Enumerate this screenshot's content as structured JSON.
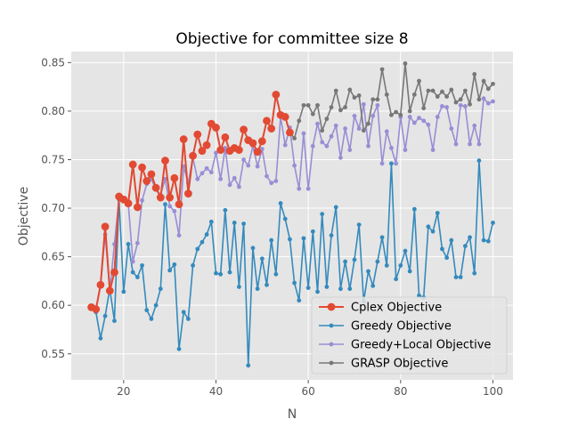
{
  "chart_data": {
    "type": "line",
    "title": "Objective for committee size 8",
    "xlabel": "N",
    "ylabel": "Objective",
    "xlim": [
      8.65,
      104.35
    ],
    "ylim": [
      0.5232,
      0.8613
    ],
    "xticks": [
      20,
      40,
      60,
      80,
      100
    ],
    "yticks": [
      0.55,
      0.6,
      0.65,
      0.7,
      0.75,
      0.8,
      0.85
    ],
    "ytick_labels": [
      "0.55",
      "0.60",
      "0.65",
      "0.70",
      "0.75",
      "0.80",
      "0.85"
    ],
    "grid": true,
    "legend_position": "lower-right",
    "series": [
      {
        "name": "Greedy Objective",
        "color": "#348abd",
        "marker": "small",
        "x": [
          13,
          14,
          15,
          16,
          17,
          18,
          19,
          20,
          21,
          22,
          23,
          24,
          25,
          26,
          27,
          28,
          29,
          30,
          31,
          32,
          33,
          34,
          35,
          36,
          37,
          38,
          39,
          40,
          41,
          42,
          43,
          44,
          45,
          46,
          47,
          48,
          49,
          50,
          51,
          52,
          53,
          54,
          55,
          56,
          57,
          58,
          59,
          60,
          61,
          62,
          63,
          64,
          65,
          66,
          67,
          68,
          69,
          70,
          71,
          72,
          73,
          74,
          75,
          76,
          77,
          78,
          79,
          80,
          81,
          82,
          83,
          84,
          85,
          86,
          87,
          88,
          89,
          90,
          91,
          92,
          93,
          94,
          95,
          96,
          97,
          98,
          99,
          100
        ],
        "values": [
          0.598,
          0.593,
          0.566,
          0.589,
          0.617,
          0.584,
          0.709,
          0.614,
          0.663,
          0.634,
          0.629,
          0.641,
          0.595,
          0.586,
          0.6,
          0.617,
          0.704,
          0.636,
          0.642,
          0.555,
          0.593,
          0.586,
          0.641,
          0.658,
          0.665,
          0.673,
          0.686,
          0.633,
          0.632,
          0.698,
          0.634,
          0.685,
          0.619,
          0.684,
          0.538,
          0.659,
          0.617,
          0.648,
          0.621,
          0.667,
          0.632,
          0.705,
          0.689,
          0.668,
          0.623,
          0.605,
          0.669,
          0.618,
          0.676,
          0.614,
          0.694,
          0.619,
          0.672,
          0.701,
          0.617,
          0.645,
          0.617,
          0.647,
          0.683,
          0.604,
          0.635,
          0.62,
          0.645,
          0.67,
          0.641,
          0.746,
          0.627,
          0.641,
          0.656,
          0.635,
          0.699,
          0.61,
          0.608,
          0.681,
          0.676,
          0.695,
          0.658,
          0.649,
          0.667,
          0.629,
          0.629,
          0.661,
          0.67,
          0.633,
          0.749,
          0.667,
          0.666,
          0.685
        ]
      },
      {
        "name": "Greedy+Local Objective",
        "color": "#988ed5",
        "marker": "small",
        "x": [
          13,
          14,
          15,
          16,
          17,
          18,
          19,
          20,
          21,
          22,
          23,
          24,
          25,
          26,
          27,
          28,
          29,
          30,
          31,
          32,
          33,
          34,
          35,
          36,
          37,
          38,
          39,
          40,
          41,
          42,
          43,
          44,
          45,
          46,
          47,
          48,
          49,
          50,
          51,
          52,
          53,
          54,
          55,
          56,
          57,
          58,
          59,
          60,
          61,
          62,
          63,
          64,
          65,
          66,
          67,
          68,
          69,
          70,
          71,
          72,
          73,
          74,
          75,
          76,
          77,
          78,
          79,
          80,
          81,
          82,
          83,
          84,
          85,
          86,
          87,
          88,
          89,
          90,
          91,
          92,
          93,
          94,
          95,
          96,
          97,
          98,
          99,
          100
        ],
        "values": [
          0.598,
          0.595,
          0.62,
          0.673,
          0.615,
          0.663,
          0.71,
          0.71,
          0.705,
          0.645,
          0.664,
          0.708,
          0.725,
          0.73,
          0.719,
          0.714,
          0.73,
          0.702,
          0.697,
          0.672,
          0.743,
          0.726,
          0.752,
          0.73,
          0.736,
          0.741,
          0.737,
          0.757,
          0.73,
          0.762,
          0.724,
          0.731,
          0.722,
          0.75,
          0.744,
          0.764,
          0.743,
          0.761,
          0.733,
          0.726,
          0.728,
          0.794,
          0.765,
          0.783,
          0.744,
          0.72,
          0.777,
          0.72,
          0.764,
          0.787,
          0.768,
          0.764,
          0.774,
          0.785,
          0.752,
          0.782,
          0.76,
          0.795,
          0.782,
          0.807,
          0.764,
          0.795,
          0.806,
          0.746,
          0.779,
          0.762,
          0.746,
          0.794,
          0.76,
          0.794,
          0.788,
          0.793,
          0.79,
          0.786,
          0.76,
          0.794,
          0.805,
          0.804,
          0.782,
          0.766,
          0.806,
          0.805,
          0.766,
          0.785,
          0.766,
          0.813,
          0.808,
          0.81
        ]
      },
      {
        "name": "GRASP Objective",
        "color": "#777777",
        "marker": "small",
        "x": [
          13,
          14,
          15,
          16,
          17,
          18,
          19,
          20,
          21,
          22,
          23,
          24,
          25,
          26,
          27,
          28,
          29,
          30,
          31,
          32,
          33,
          34,
          35,
          36,
          37,
          38,
          39,
          40,
          41,
          42,
          43,
          44,
          45,
          46,
          47,
          48,
          49,
          50,
          51,
          52,
          53,
          54,
          55,
          56,
          57,
          58,
          59,
          60,
          61,
          62,
          63,
          64,
          65,
          66,
          67,
          68,
          69,
          70,
          71,
          72,
          73,
          74,
          75,
          76,
          77,
          78,
          79,
          80,
          81,
          82,
          83,
          84,
          85,
          86,
          87,
          88,
          89,
          90,
          91,
          92,
          93,
          94,
          95,
          96,
          97,
          98,
          99,
          100
        ],
        "values": [
          0.598,
          0.596,
          0.621,
          0.681,
          0.615,
          0.634,
          0.712,
          0.709,
          0.705,
          0.745,
          0.701,
          0.742,
          0.728,
          0.735,
          0.721,
          0.711,
          0.749,
          0.711,
          0.731,
          0.704,
          0.771,
          0.715,
          0.754,
          0.776,
          0.759,
          0.765,
          0.787,
          0.783,
          0.76,
          0.773,
          0.759,
          0.762,
          0.76,
          0.781,
          0.77,
          0.767,
          0.758,
          0.769,
          0.79,
          0.782,
          0.817,
          0.796,
          0.794,
          0.778,
          0.772,
          0.79,
          0.806,
          0.806,
          0.797,
          0.806,
          0.78,
          0.792,
          0.804,
          0.821,
          0.801,
          0.804,
          0.822,
          0.814,
          0.816,
          0.78,
          0.787,
          0.812,
          0.812,
          0.843,
          0.817,
          0.796,
          0.799,
          0.796,
          0.849,
          0.8,
          0.817,
          0.831,
          0.803,
          0.821,
          0.821,
          0.815,
          0.82,
          0.815,
          0.822,
          0.809,
          0.812,
          0.821,
          0.807,
          0.838,
          0.812,
          0.831,
          0.823,
          0.828
        ]
      },
      {
        "name": "Cplex Objective",
        "color": "#e24a33",
        "marker": "large",
        "x": [
          13,
          14,
          15,
          16,
          17,
          18,
          19,
          20,
          21,
          22,
          23,
          24,
          25,
          26,
          27,
          28,
          29,
          30,
          31,
          32,
          33,
          34,
          35,
          36,
          37,
          38,
          39,
          40,
          41,
          42,
          43,
          44,
          45,
          46,
          47,
          48,
          49,
          50,
          51,
          52,
          53,
          54,
          55,
          56
        ],
        "values": [
          0.598,
          0.596,
          0.621,
          0.681,
          0.615,
          0.634,
          0.712,
          0.709,
          0.705,
          0.745,
          0.701,
          0.742,
          0.728,
          0.735,
          0.721,
          0.711,
          0.749,
          0.711,
          0.731,
          0.704,
          0.771,
          0.715,
          0.754,
          0.776,
          0.759,
          0.765,
          0.787,
          0.783,
          0.76,
          0.773,
          0.759,
          0.762,
          0.76,
          0.781,
          0.77,
          0.767,
          0.758,
          0.769,
          0.79,
          0.782,
          0.817,
          0.796,
          0.794,
          0.778
        ]
      }
    ],
    "legend_order": [
      "Cplex Objective",
      "Greedy Objective",
      "Greedy+Local Objective",
      "GRASP Objective"
    ]
  }
}
